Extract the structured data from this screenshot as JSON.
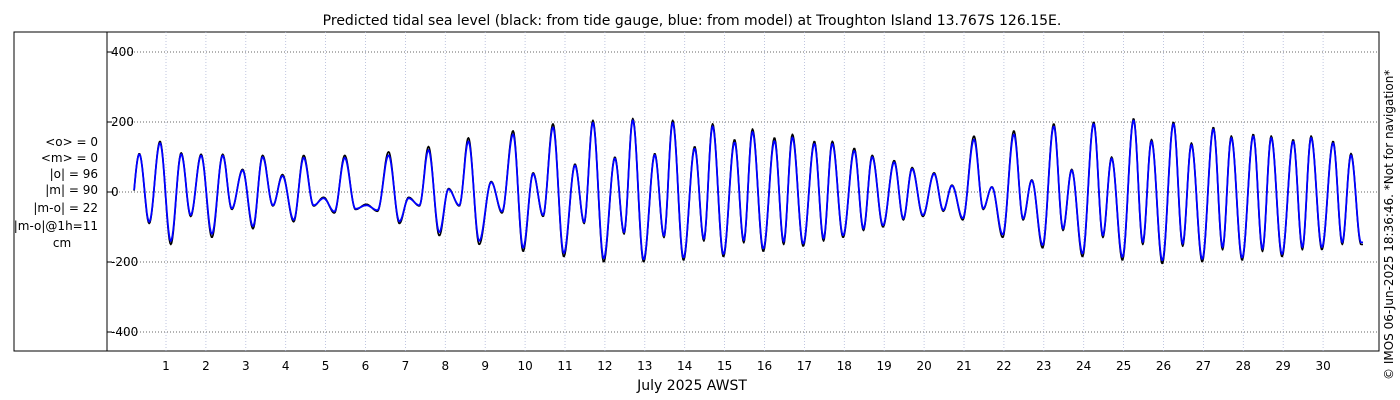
{
  "chart_data": {
    "type": "line",
    "title": "Predicted tidal sea level (black: from tide gauge, blue: from model) at Troughton Island 13.767S 126.15E.",
    "xlabel": "July 2025 AWST",
    "ylabel": "",
    "ylim": [
      -420,
      420
    ],
    "xlim": [
      0.2,
      31.0
    ],
    "yticks": [
      -400,
      -200,
      0,
      200,
      400
    ],
    "xticks": [
      "1",
      "2",
      "3",
      "4",
      "5",
      "6",
      "7",
      "8",
      "9",
      "10",
      "11",
      "12",
      "13",
      "14",
      "15",
      "16",
      "17",
      "18",
      "19",
      "20",
      "21",
      "22",
      "23",
      "24",
      "25",
      "26",
      "27",
      "28",
      "29",
      "30"
    ],
    "grid": true,
    "stats": [
      "<o> = 0",
      "<m> = 0",
      "|o| = 96",
      "|m| = 90",
      "|m-o| = 22",
      "|m-o|@1h=11",
      "cm"
    ],
    "credit": "© IMOS 06-Jun-2025 18:36:46. *Not for navigation*",
    "series": [
      {
        "name": "tide gauge",
        "color": "#000000",
        "highs": [
          [
            0.33,
            110
          ],
          [
            0.85,
            145
          ],
          [
            1.38,
            112
          ],
          [
            1.88,
            108
          ],
          [
            2.42,
            108
          ],
          [
            2.92,
            65
          ],
          [
            3.42,
            105
          ],
          [
            3.92,
            50
          ],
          [
            4.45,
            105
          ],
          [
            4.95,
            -15
          ],
          [
            5.48,
            105
          ],
          [
            6.02,
            -35
          ],
          [
            6.58,
            115
          ],
          [
            7.08,
            -15
          ],
          [
            7.58,
            130
          ],
          [
            8.08,
            10
          ],
          [
            8.58,
            155
          ],
          [
            9.15,
            30
          ],
          [
            9.7,
            175
          ],
          [
            10.2,
            55
          ],
          [
            10.7,
            195
          ],
          [
            11.25,
            80
          ],
          [
            11.7,
            205
          ],
          [
            12.25,
            100
          ],
          [
            12.7,
            210
          ],
          [
            13.25,
            110
          ],
          [
            13.7,
            205
          ],
          [
            14.25,
            130
          ],
          [
            14.7,
            195
          ],
          [
            15.25,
            150
          ],
          [
            15.7,
            180
          ],
          [
            16.25,
            155
          ],
          [
            16.7,
            165
          ],
          [
            17.25,
            145
          ],
          [
            17.7,
            145
          ],
          [
            18.25,
            125
          ],
          [
            18.7,
            105
          ],
          [
            19.25,
            90
          ],
          [
            19.7,
            70
          ],
          [
            20.25,
            55
          ],
          [
            20.7,
            20
          ],
          [
            21.25,
            160
          ],
          [
            21.7,
            15
          ],
          [
            22.25,
            175
          ],
          [
            22.7,
            35
          ],
          [
            23.25,
            195
          ],
          [
            23.7,
            65
          ],
          [
            24.25,
            200
          ],
          [
            24.7,
            100
          ],
          [
            25.25,
            210
          ],
          [
            25.7,
            150
          ],
          [
            26.25,
            200
          ],
          [
            26.7,
            140
          ],
          [
            27.25,
            185
          ],
          [
            27.7,
            160
          ],
          [
            28.25,
            165
          ],
          [
            28.7,
            160
          ],
          [
            29.25,
            150
          ],
          [
            29.7,
            160
          ],
          [
            30.25,
            145
          ],
          [
            30.7,
            110
          ]
        ],
        "lows": [
          [
            0.58,
            -90
          ],
          [
            1.12,
            -150
          ],
          [
            1.62,
            -70
          ],
          [
            2.15,
            -130
          ],
          [
            2.65,
            -50
          ],
          [
            3.18,
            -105
          ],
          [
            3.68,
            -40
          ],
          [
            4.2,
            -85
          ],
          [
            4.7,
            -40
          ],
          [
            5.22,
            -60
          ],
          [
            5.75,
            -50
          ],
          [
            6.3,
            -55
          ],
          [
            6.85,
            -90
          ],
          [
            7.35,
            -40
          ],
          [
            7.85,
            -125
          ],
          [
            8.35,
            -40
          ],
          [
            8.85,
            -150
          ],
          [
            9.42,
            -60
          ],
          [
            9.95,
            -170
          ],
          [
            10.45,
            -70
          ],
          [
            10.97,
            -185
          ],
          [
            11.48,
            -90
          ],
          [
            11.97,
            -200
          ],
          [
            12.48,
            -120
          ],
          [
            12.97,
            -200
          ],
          [
            13.48,
            -130
          ],
          [
            13.97,
            -195
          ],
          [
            14.48,
            -140
          ],
          [
            14.97,
            -185
          ],
          [
            15.48,
            -145
          ],
          [
            15.97,
            -170
          ],
          [
            16.48,
            -150
          ],
          [
            16.97,
            -155
          ],
          [
            17.48,
            -140
          ],
          [
            17.97,
            -130
          ],
          [
            18.48,
            -110
          ],
          [
            18.97,
            -100
          ],
          [
            19.48,
            -80
          ],
          [
            19.97,
            -70
          ],
          [
            20.48,
            -55
          ],
          [
            20.97,
            -80
          ],
          [
            21.48,
            -50
          ],
          [
            21.97,
            -130
          ],
          [
            22.48,
            -80
          ],
          [
            22.97,
            -160
          ],
          [
            23.48,
            -110
          ],
          [
            23.97,
            -185
          ],
          [
            24.48,
            -130
          ],
          [
            24.97,
            -195
          ],
          [
            25.48,
            -150
          ],
          [
            25.97,
            -205
          ],
          [
            26.48,
            -155
          ],
          [
            26.97,
            -200
          ],
          [
            27.48,
            -165
          ],
          [
            27.97,
            -195
          ],
          [
            28.48,
            -170
          ],
          [
            28.97,
            -185
          ],
          [
            29.48,
            -165
          ],
          [
            29.97,
            -165
          ],
          [
            30.48,
            -150
          ]
        ]
      },
      {
        "name": "model",
        "color": "#0000ff",
        "highs": [
          [
            0.33,
            108
          ],
          [
            0.85,
            140
          ],
          [
            1.38,
            108
          ],
          [
            1.88,
            104
          ],
          [
            2.42,
            104
          ],
          [
            2.92,
            62
          ],
          [
            3.42,
            100
          ],
          [
            3.92,
            46
          ],
          [
            4.45,
            98
          ],
          [
            4.95,
            -18
          ],
          [
            5.48,
            98
          ],
          [
            6.02,
            -38
          ],
          [
            6.58,
            105
          ],
          [
            7.08,
            -18
          ],
          [
            7.58,
            120
          ],
          [
            8.08,
            8
          ],
          [
            8.58,
            145
          ],
          [
            9.15,
            28
          ],
          [
            9.7,
            165
          ],
          [
            10.2,
            52
          ],
          [
            10.7,
            185
          ],
          [
            11.25,
            76
          ],
          [
            11.7,
            198
          ],
          [
            12.25,
            96
          ],
          [
            12.7,
            205
          ],
          [
            13.25,
            106
          ],
          [
            13.7,
            198
          ],
          [
            14.25,
            124
          ],
          [
            14.7,
            188
          ],
          [
            15.25,
            142
          ],
          [
            15.7,
            172
          ],
          [
            16.25,
            146
          ],
          [
            16.7,
            156
          ],
          [
            17.25,
            138
          ],
          [
            17.7,
            138
          ],
          [
            18.25,
            118
          ],
          [
            18.7,
            100
          ],
          [
            19.25,
            85
          ],
          [
            19.7,
            66
          ],
          [
            20.25,
            52
          ],
          [
            20.7,
            18
          ],
          [
            21.25,
            150
          ],
          [
            21.7,
            14
          ],
          [
            22.25,
            165
          ],
          [
            22.7,
            33
          ],
          [
            23.25,
            188
          ],
          [
            23.7,
            62
          ],
          [
            24.25,
            195
          ],
          [
            24.7,
            96
          ],
          [
            25.25,
            205
          ],
          [
            25.7,
            145
          ],
          [
            26.25,
            195
          ],
          [
            26.7,
            135
          ],
          [
            27.25,
            180
          ],
          [
            27.7,
            155
          ],
          [
            28.25,
            160
          ],
          [
            28.7,
            155
          ],
          [
            29.25,
            145
          ],
          [
            29.7,
            155
          ],
          [
            30.25,
            140
          ],
          [
            30.7,
            105
          ]
        ],
        "lows": [
          [
            0.58,
            -85
          ],
          [
            1.12,
            -140
          ],
          [
            1.62,
            -66
          ],
          [
            2.15,
            -120
          ],
          [
            2.65,
            -47
          ],
          [
            3.18,
            -98
          ],
          [
            3.68,
            -38
          ],
          [
            4.2,
            -80
          ],
          [
            4.7,
            -38
          ],
          [
            5.22,
            -56
          ],
          [
            5.75,
            -48
          ],
          [
            6.3,
            -52
          ],
          [
            6.85,
            -84
          ],
          [
            7.35,
            -38
          ],
          [
            7.85,
            -115
          ],
          [
            8.35,
            -38
          ],
          [
            8.85,
            -140
          ],
          [
            9.42,
            -56
          ],
          [
            9.95,
            -160
          ],
          [
            10.45,
            -66
          ],
          [
            10.97,
            -175
          ],
          [
            11.48,
            -86
          ],
          [
            11.97,
            -190
          ],
          [
            12.48,
            -115
          ],
          [
            12.97,
            -193
          ],
          [
            13.48,
            -125
          ],
          [
            13.97,
            -188
          ],
          [
            14.48,
            -134
          ],
          [
            14.97,
            -178
          ],
          [
            15.48,
            -138
          ],
          [
            15.97,
            -162
          ],
          [
            16.48,
            -142
          ],
          [
            16.97,
            -148
          ],
          [
            17.48,
            -133
          ],
          [
            17.97,
            -124
          ],
          [
            18.48,
            -105
          ],
          [
            18.97,
            -95
          ],
          [
            19.48,
            -76
          ],
          [
            19.97,
            -66
          ],
          [
            20.48,
            -52
          ],
          [
            20.97,
            -75
          ],
          [
            21.48,
            -47
          ],
          [
            21.97,
            -122
          ],
          [
            22.48,
            -76
          ],
          [
            22.97,
            -152
          ],
          [
            23.48,
            -105
          ],
          [
            23.97,
            -176
          ],
          [
            24.48,
            -124
          ],
          [
            24.97,
            -186
          ],
          [
            25.48,
            -143
          ],
          [
            25.97,
            -196
          ],
          [
            26.48,
            -148
          ],
          [
            26.97,
            -192
          ],
          [
            27.48,
            -158
          ],
          [
            27.97,
            -188
          ],
          [
            28.48,
            -163
          ],
          [
            28.97,
            -178
          ],
          [
            29.48,
            -158
          ],
          [
            29.97,
            -158
          ],
          [
            30.48,
            -144
          ]
        ]
      }
    ]
  }
}
